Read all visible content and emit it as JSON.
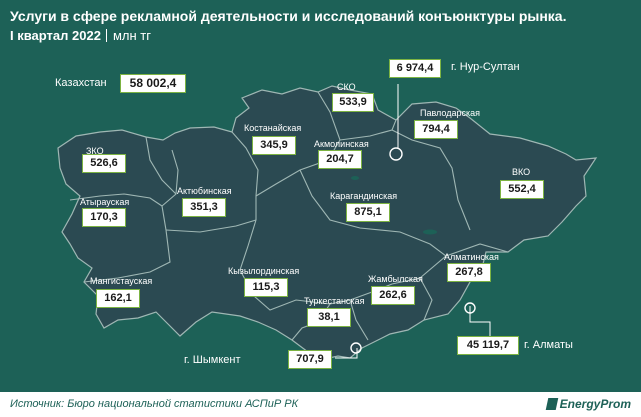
{
  "title": "Услуги в сфере рекламной деятельности и исследований конъюнктуры рынка.",
  "period": "I квартал 2022",
  "unit": "млн тг",
  "country": {
    "label": "Казахстан",
    "value": "58 002,4"
  },
  "regions": [
    {
      "id": "sko",
      "label": "СКО",
      "value": "533,9"
    },
    {
      "id": "nur-sultan",
      "label": "г. Нур-Султан",
      "value": "6 974,4"
    },
    {
      "id": "pavlodar",
      "label": "Павлодарская",
      "value": "794,4"
    },
    {
      "id": "kostanay",
      "label": "Костанайская",
      "value": "345,9"
    },
    {
      "id": "akmola",
      "label": "Акмолинская",
      "value": "204,7"
    },
    {
      "id": "zko",
      "label": "ЗКО",
      "value": "526,6"
    },
    {
      "id": "vko",
      "label": "ВКО",
      "value": "552,4"
    },
    {
      "id": "atyrau",
      "label": "Атырауская",
      "value": "170,3"
    },
    {
      "id": "aktobe",
      "label": "Актюбинская",
      "value": "351,3"
    },
    {
      "id": "karaganda",
      "label": "Карагандинская",
      "value": "875,1"
    },
    {
      "id": "almaty-obl",
      "label": "Алматинская",
      "value": "267,8"
    },
    {
      "id": "kyzylorda",
      "label": "Кызылординская",
      "value": "115,3"
    },
    {
      "id": "zhambyl",
      "label": "Жамбылская",
      "value": "262,6"
    },
    {
      "id": "mangystau",
      "label": "Мангистауская",
      "value": "162,1"
    },
    {
      "id": "turkestan",
      "label": "Туркестанская",
      "value": "38,1"
    },
    {
      "id": "shymkent",
      "label": "г. Шымкент",
      "value": "707,9"
    },
    {
      "id": "almaty",
      "label": "г. Алматы",
      "value": "45 119,7"
    }
  ],
  "source": "Источник: Бюро национальной статистики АСПиР РК",
  "brand": "EnergyProm",
  "colors": {
    "background": "#1d6157",
    "land": "#2b4a52",
    "border": "#9fb7b4",
    "box_border": "#7cb342",
    "text": "#ffffff"
  }
}
